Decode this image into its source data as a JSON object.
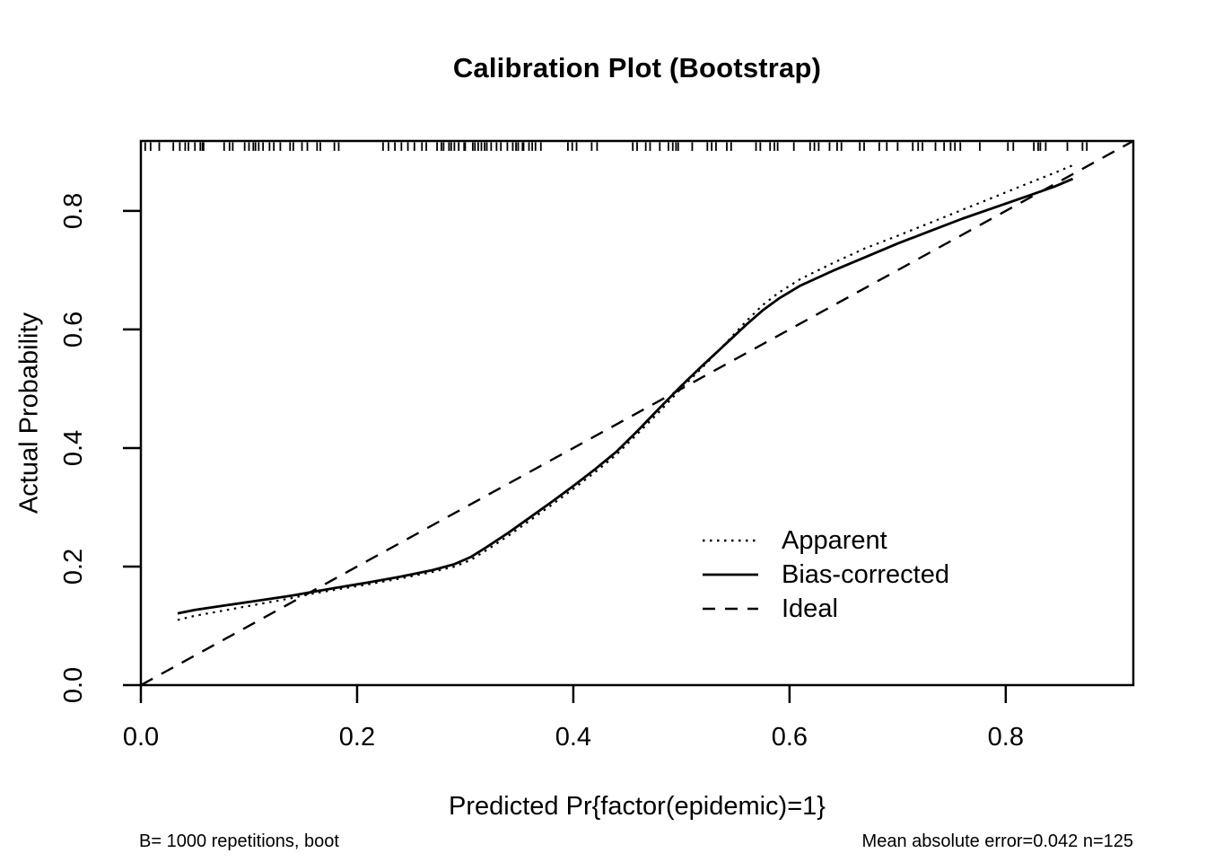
{
  "chart_data": {
    "type": "line",
    "title": "Calibration Plot (Bootstrap)",
    "xlabel": "Predicted Pr{factor(epidemic)=1}",
    "ylabel": "Actual Probability",
    "xlim": [
      0,
      0.918
    ],
    "ylim": [
      0,
      0.918
    ],
    "xticks": [
      0.0,
      0.2,
      0.4,
      0.6,
      0.8
    ],
    "yticks": [
      0.0,
      0.2,
      0.4,
      0.6,
      0.8
    ],
    "grid": false,
    "colors": {
      "foreground": "#000000",
      "background": "#ffffff"
    },
    "legend": {
      "position": "inside-lower-right",
      "entries": [
        {
          "label": "Apparent",
          "line_style": "dotted"
        },
        {
          "label": "Bias-corrected",
          "line_style": "solid"
        },
        {
          "label": "Ideal",
          "line_style": "dashed"
        }
      ]
    },
    "series": [
      {
        "name": "Apparent",
        "style": "dotted",
        "points": [
          [
            0.034,
            0.11
          ],
          [
            0.05,
            0.117
          ],
          [
            0.08,
            0.127
          ],
          [
            0.11,
            0.137
          ],
          [
            0.14,
            0.147
          ],
          [
            0.155,
            0.153
          ],
          [
            0.18,
            0.161
          ],
          [
            0.21,
            0.17
          ],
          [
            0.24,
            0.18
          ],
          [
            0.27,
            0.191
          ],
          [
            0.29,
            0.2
          ],
          [
            0.305,
            0.211
          ],
          [
            0.32,
            0.228
          ],
          [
            0.34,
            0.252
          ],
          [
            0.36,
            0.278
          ],
          [
            0.38,
            0.304
          ],
          [
            0.4,
            0.331
          ],
          [
            0.42,
            0.359
          ],
          [
            0.44,
            0.389
          ],
          [
            0.46,
            0.425
          ],
          [
            0.48,
            0.462
          ],
          [
            0.5,
            0.501
          ],
          [
            0.52,
            0.537
          ],
          [
            0.54,
            0.575
          ],
          [
            0.56,
            0.614
          ],
          [
            0.575,
            0.641
          ],
          [
            0.59,
            0.662
          ],
          [
            0.61,
            0.685
          ],
          [
            0.64,
            0.712
          ],
          [
            0.67,
            0.737
          ],
          [
            0.7,
            0.758
          ],
          [
            0.73,
            0.78
          ],
          [
            0.76,
            0.802
          ],
          [
            0.79,
            0.824
          ],
          [
            0.82,
            0.846
          ],
          [
            0.845,
            0.864
          ],
          [
            0.862,
            0.877
          ]
        ]
      },
      {
        "name": "Bias-corrected",
        "style": "solid",
        "points": [
          [
            0.034,
            0.121
          ],
          [
            0.05,
            0.127
          ],
          [
            0.08,
            0.135
          ],
          [
            0.11,
            0.143
          ],
          [
            0.14,
            0.151
          ],
          [
            0.155,
            0.156
          ],
          [
            0.18,
            0.164
          ],
          [
            0.21,
            0.173
          ],
          [
            0.24,
            0.183
          ],
          [
            0.27,
            0.194
          ],
          [
            0.29,
            0.204
          ],
          [
            0.305,
            0.216
          ],
          [
            0.32,
            0.233
          ],
          [
            0.34,
            0.257
          ],
          [
            0.36,
            0.283
          ],
          [
            0.38,
            0.309
          ],
          [
            0.4,
            0.336
          ],
          [
            0.42,
            0.364
          ],
          [
            0.44,
            0.394
          ],
          [
            0.46,
            0.43
          ],
          [
            0.48,
            0.468
          ],
          [
            0.5,
            0.505
          ],
          [
            0.52,
            0.54
          ],
          [
            0.54,
            0.574
          ],
          [
            0.56,
            0.608
          ],
          [
            0.575,
            0.632
          ],
          [
            0.59,
            0.652
          ],
          [
            0.61,
            0.674
          ],
          [
            0.64,
            0.699
          ],
          [
            0.67,
            0.722
          ],
          [
            0.7,
            0.745
          ],
          [
            0.73,
            0.766
          ],
          [
            0.76,
            0.787
          ],
          [
            0.79,
            0.806
          ],
          [
            0.82,
            0.825
          ],
          [
            0.845,
            0.841
          ],
          [
            0.862,
            0.854
          ]
        ]
      },
      {
        "name": "Ideal",
        "style": "dashed",
        "points": [
          [
            0,
            0
          ],
          [
            0.918,
            0.918
          ]
        ]
      }
    ],
    "rug_x": [
      0.004,
      0.009,
      0.017,
      0.03,
      0.036,
      0.041,
      0.044,
      0.05,
      0.055,
      0.057,
      0.058,
      0.077,
      0.082,
      0.085,
      0.096,
      0.1,
      0.104,
      0.106,
      0.109,
      0.113,
      0.119,
      0.123,
      0.129,
      0.138,
      0.141,
      0.149,
      0.154,
      0.163,
      0.166,
      0.179,
      0.183,
      0.224,
      0.229,
      0.235,
      0.241,
      0.247,
      0.253,
      0.26,
      0.264,
      0.274,
      0.278,
      0.28,
      0.285,
      0.287,
      0.29,
      0.294,
      0.299,
      0.3,
      0.307,
      0.309,
      0.312,
      0.315,
      0.318,
      0.32,
      0.324,
      0.329,
      0.333,
      0.339,
      0.344,
      0.347,
      0.349,
      0.353,
      0.354,
      0.359,
      0.362,
      0.365,
      0.37,
      0.395,
      0.399,
      0.403,
      0.417,
      0.422,
      0.455,
      0.459,
      0.467,
      0.471,
      0.48,
      0.488,
      0.492,
      0.495,
      0.497,
      0.51,
      0.524,
      0.528,
      0.532,
      0.542,
      0.546,
      0.569,
      0.573,
      0.582,
      0.586,
      0.589,
      0.604,
      0.619,
      0.623,
      0.627,
      0.637,
      0.644,
      0.648,
      0.665,
      0.669,
      0.683,
      0.69,
      0.7,
      0.714,
      0.719,
      0.723,
      0.735,
      0.743,
      0.749,
      0.753,
      0.758,
      0.776,
      0.802,
      0.807,
      0.826,
      0.83,
      0.832,
      0.837,
      0.857,
      0.871,
      0.875
    ],
    "footnotes": {
      "left": "B= 1000 repetitions, boot",
      "right": "Mean absolute error=0.042 n=125"
    }
  }
}
